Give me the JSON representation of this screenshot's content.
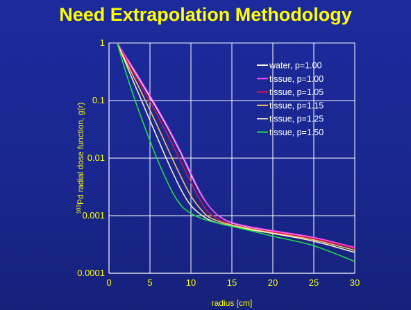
{
  "slide": {
    "title": "Need Extrapolation Methodology"
  },
  "chart_data": {
    "type": "line",
    "xlabel": "radius [cm]",
    "ylabel_superscript": "103",
    "ylabel": "Pd radial dose function, g(r)",
    "xlim": [
      0,
      30
    ],
    "ylim": [
      0.0001,
      1
    ],
    "yscale": "log",
    "x_ticks": [
      "0",
      "5",
      "10",
      "15",
      "20",
      "25",
      "30"
    ],
    "y_ticks": [
      "0.0001",
      "0.001",
      "0.01",
      "0.1",
      "1"
    ],
    "grid": true,
    "legend_position": "top-right",
    "series": [
      {
        "name": "water, p=1.00",
        "color": "#ffffff",
        "x": [
          1,
          2,
          3,
          4,
          5,
          6,
          7,
          8,
          9,
          10,
          11,
          12,
          13,
          14,
          15,
          17,
          20,
          25,
          30
        ],
        "y": [
          1,
          0.58,
          0.34,
          0.2,
          0.115,
          0.066,
          0.037,
          0.02,
          0.0105,
          0.0052,
          0.0027,
          0.0016,
          0.0011,
          0.00087,
          0.00075,
          0.00064,
          0.00054,
          0.00041,
          0.00027
        ]
      },
      {
        "name": "tissue, p=1.00",
        "color": "#ff44ff",
        "x": [
          1,
          2,
          3,
          4,
          5,
          6,
          7,
          8,
          9,
          10,
          11,
          12,
          13,
          14,
          15,
          17,
          20,
          25,
          30
        ],
        "y": [
          1,
          0.6,
          0.36,
          0.21,
          0.122,
          0.07,
          0.039,
          0.021,
          0.011,
          0.0055,
          0.0028,
          0.0016,
          0.0011,
          0.00087,
          0.00076,
          0.00065,
          0.00055,
          0.00042,
          0.00028
        ]
      },
      {
        "name": "tissue, p=1.05",
        "color": "#dd1144",
        "x": [
          1,
          2,
          3,
          4,
          5,
          6,
          7,
          8,
          9,
          10,
          11,
          12,
          13,
          14,
          15,
          17,
          20,
          25,
          30
        ],
        "y": [
          1,
          0.55,
          0.31,
          0.175,
          0.097,
          0.053,
          0.028,
          0.0145,
          0.0074,
          0.0038,
          0.002,
          0.0012,
          0.00093,
          0.00079,
          0.0007,
          0.00061,
          0.00052,
          0.0004,
          0.00027
        ]
      },
      {
        "name": "tissue, p=1.15",
        "color": "#ffc266",
        "x": [
          1,
          2,
          3,
          4,
          5,
          6,
          7,
          8,
          9,
          10,
          11,
          12,
          13,
          14,
          15,
          17,
          20,
          25,
          30
        ],
        "y": [
          1,
          0.5,
          0.26,
          0.135,
          0.068,
          0.034,
          0.0165,
          0.0081,
          0.0041,
          0.0022,
          0.0014,
          0.00099,
          0.00084,
          0.00075,
          0.00069,
          0.0006,
          0.0005,
          0.00038,
          0.00025
        ]
      },
      {
        "name": "tissue, p=1.25",
        "color": "#f0f0d0",
        "x": [
          1,
          2,
          3,
          4,
          5,
          6,
          7,
          8,
          9,
          10,
          11,
          12,
          13,
          14,
          15,
          17,
          20,
          25,
          30
        ],
        "y": [
          1,
          0.46,
          0.21,
          0.098,
          0.045,
          0.021,
          0.0098,
          0.0048,
          0.0025,
          0.0015,
          0.0011,
          0.00088,
          0.00077,
          0.00071,
          0.00066,
          0.00058,
          0.00049,
          0.00036,
          0.00023
        ]
      },
      {
        "name": "tissue, p=1.50",
        "color": "#22dd44",
        "x": [
          1,
          2,
          3,
          4,
          5,
          6,
          7,
          8,
          9,
          10,
          11,
          12,
          13,
          14,
          15,
          17,
          20,
          25,
          30
        ],
        "y": [
          1,
          0.33,
          0.12,
          0.048,
          0.02,
          0.0088,
          0.0042,
          0.0022,
          0.0014,
          0.0011,
          0.00093,
          0.00083,
          0.00076,
          0.0007,
          0.00065,
          0.00056,
          0.00044,
          0.0003,
          0.00016
        ]
      }
    ]
  }
}
